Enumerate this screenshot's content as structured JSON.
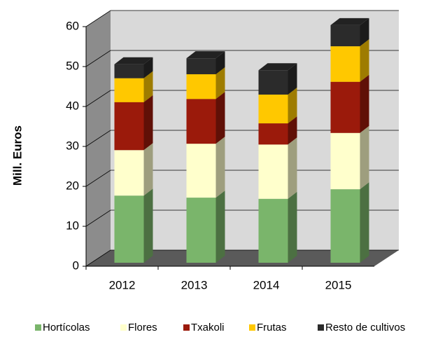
{
  "chart_data": {
    "type": "bar3d_stacked",
    "y_label": "Mill. Euros",
    "categories": [
      "2012",
      "2013",
      "2014",
      "2015"
    ],
    "series": [
      {
        "name": "Hortícolas",
        "color": "#7ab56b",
        "values": [
          16.8,
          16.3,
          16,
          18.4
        ]
      },
      {
        "name": "Flores",
        "color": "#ffffcc",
        "values": [
          11.4,
          13.5,
          13.6,
          14.1
        ]
      },
      {
        "name": "Txakoli",
        "color": "#9b1a0b",
        "values": [
          12,
          11.2,
          5.3,
          12.8
        ]
      },
      {
        "name": "Frutas",
        "color": "#ffc800",
        "values": [
          6,
          6.2,
          7.2,
          8.9
        ]
      },
      {
        "name": "Resto de cultivos",
        "color": "#2b2b2b",
        "values": [
          3.5,
          4,
          6.1,
          5.3
        ]
      }
    ],
    "ylim": [
      0,
      60
    ],
    "yticks": [
      0,
      10,
      20,
      30,
      40,
      50,
      60
    ],
    "grid": true,
    "legend": "bottom"
  }
}
